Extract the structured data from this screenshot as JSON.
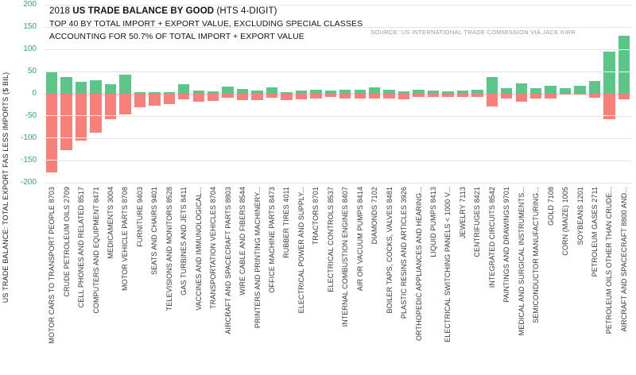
{
  "header": {
    "title_prefix": "2018",
    "title_bold": "US TRADE BALANCE BY GOOD",
    "title_suffix": "(HTS 4-DIGIT)",
    "subtitle1": "TOP 40 BY TOTAL IMPORT + EXPORT VALUE, EXCLUDING SPECIAL CLASSES",
    "subtitle2": "ACCOUNTING FOR 50.7% OF TOTAL IMPORT + EXPORT VALUE",
    "source": "SOURCE: US INTERNATIONAL TRADE COMMISSION VIA JACK KIRR"
  },
  "chart_data": {
    "type": "bar",
    "title": "2018 US TRADE BALANCE BY GOOD (HTS 4-DIGIT)",
    "ylabel": "US TRADE BALANCE: TOTAL EXPORT FAS LESS IMPORTS ($ BIL)",
    "xlabel": "",
    "ylim": [
      -200,
      200
    ],
    "yticks": [
      200,
      150,
      100,
      50,
      0,
      -50,
      -100,
      -150,
      -200
    ],
    "grid": true,
    "legend": "none",
    "colors": {
      "export": "#5cc688",
      "import": "#f7817a",
      "tick_label": "#2fac66"
    },
    "categories": [
      "MOTOR CARS TO TRANSPORT PEOPLE 8703",
      "CRUDE PETROLEUM OILS 2709",
      "CELL PHONES AND RELATED 8517",
      "COMPUTERS AND EQUIPMENT 8471",
      "MEDICAMENTS 3004",
      "MOTOR VEHICLE PARTS 8708",
      "FURNITURE 9403",
      "SEATS AND CHAIRS 9401",
      "TELEVISIONS AND MONITORS 8528",
      "GAS TURBINES AND JETS 8411",
      "VACCINES AND IMMUNOLOGICAL...",
      "TRANSPORTATION VEHICLES 8704",
      "AIRCRAFT AND SPACECRAFT PARTS 8803",
      "WIRE CABLE AND FIBERS 8544",
      "PRINTERS AND PRINTING MACHINERY...",
      "OFFICE MACHINE PARTS 8473",
      "RUBBER TIRES 4011",
      "ELECTRICAL POWER AND SUPPLY...",
      "TRACTORS 8701",
      "ELECTRICAL CONTROLS 8537",
      "INTERNAL COMBUSTION ENGINES 8407",
      "AIR OR VACUUM PUMPS 8414",
      "DIAMONDS 7102",
      "BOILER TAPS, COCKS, VALVES 8481",
      "PLASTIC RESINS AND ARTICLES 3926",
      "ORTHOPEDIC APPLIANCES AND HEARING...",
      "LIQUID PUMPS 8413",
      "ELECTRICAL SWITCHING PANELS < 1000 V...",
      "JEWELRY 7113",
      "CENTRIFUGES 8421",
      "INTEGRATED CIRCUITS 8542",
      "PAINTINGS AND DRAWINGS 9701",
      "MEDICAL AND SURGICAL INSTRUMENTS...",
      "SEMICONDUCTOR MANUFACTURING...",
      "GOLD 7108",
      "CORN (MAIZE) 1005",
      "SOYBEANS 1201",
      "PETROLEUM GASES 2711",
      "PETROLEUM OILS OTHER THAN CRUDE...",
      "AIRCRAFT AND SPACECRAFT 8800 AND..."
    ],
    "series": [
      {
        "name": "exports",
        "values": [
          48,
          38,
          27,
          30,
          22,
          43,
          4,
          4,
          4,
          21,
          8,
          5,
          16,
          10,
          7,
          14,
          4,
          8,
          9,
          8,
          9,
          9,
          15,
          9,
          6,
          9,
          8,
          6,
          7,
          9,
          37,
          12,
          24,
          12,
          18,
          12,
          17,
          28,
          95,
          131
        ]
      },
      {
        "name": "imports",
        "values": [
          -176,
          -127,
          -105,
          -87,
          -57,
          -47,
          -31,
          -26,
          -23,
          -13,
          -18,
          -16,
          -9,
          -15,
          -15,
          -9,
          -14,
          -13,
          -10,
          -8,
          -11,
          -10,
          -11,
          -11,
          -13,
          -8,
          -7,
          -8,
          -8,
          -7,
          -29,
          -11,
          -17,
          -11,
          -10,
          -1,
          -1,
          -9,
          -57,
          -12
        ]
      }
    ]
  }
}
